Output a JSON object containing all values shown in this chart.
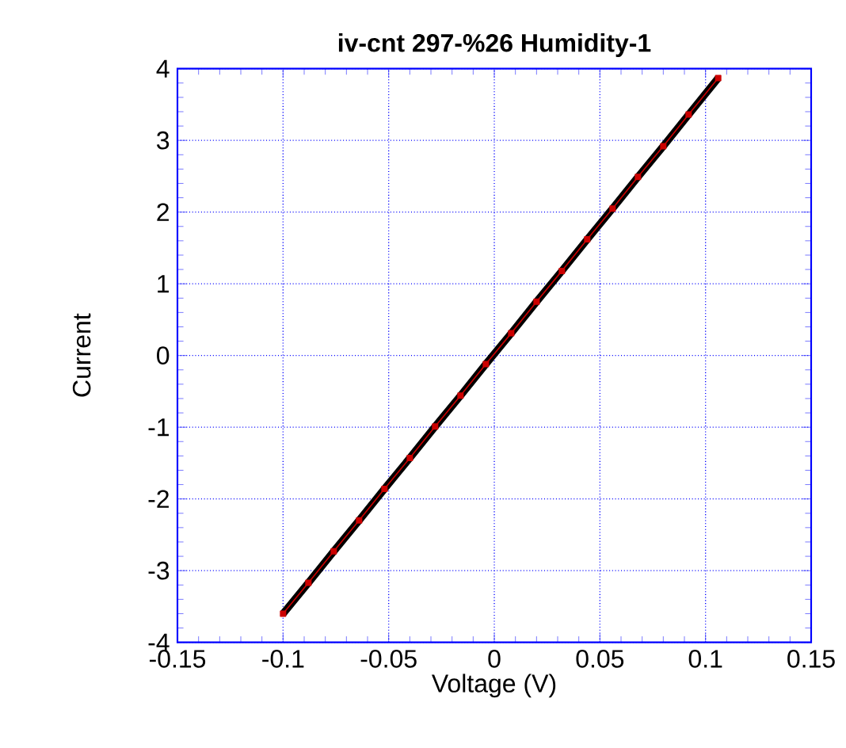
{
  "chart_data": {
    "type": "line",
    "title": "iv-cnt 297-%26 Humidity-1",
    "xlabel": "Voltage (V)",
    "ylabel": "Current",
    "xlim": [
      -0.15,
      0.15
    ],
    "xticks": [
      -0.15,
      -0.1,
      -0.05,
      0,
      0.05,
      0.1,
      0.15
    ],
    "ylim": [
      -4,
      4
    ],
    "yticks": [
      -4,
      -3,
      -2,
      -1,
      0,
      1,
      2,
      3,
      4
    ],
    "grid": true,
    "x": [
      -0.1,
      -0.088,
      -0.076,
      -0.064,
      -0.052,
      -0.04,
      -0.028,
      -0.016,
      -0.004,
      0.008,
      0.02,
      0.032,
      0.044,
      0.056,
      0.068,
      0.08,
      0.092,
      0.106
    ],
    "series": [
      {
        "color": "#000000",
        "marker": "none",
        "values": [
          -3.6,
          -3.17,
          -2.73,
          -2.3,
          -1.86,
          -1.43,
          -0.99,
          -0.56,
          -0.12,
          0.31,
          0.75,
          1.18,
          1.62,
          2.05,
          2.49,
          2.92,
          3.36,
          3.87
        ]
      },
      {
        "color": "#cc0000",
        "marker": "square",
        "values": [
          -3.6,
          -3.17,
          -2.73,
          -2.3,
          -1.86,
          -1.43,
          -0.99,
          -0.56,
          -0.12,
          0.31,
          0.75,
          1.18,
          1.62,
          2.05,
          2.49,
          2.92,
          3.36,
          3.87
        ]
      }
    ]
  }
}
